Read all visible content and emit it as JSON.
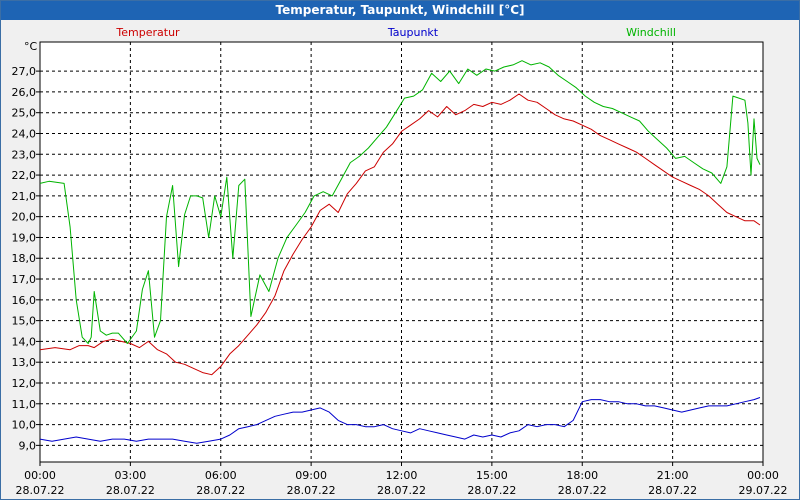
{
  "window_title": "Temperatur, Taupunkt, Windchill [°C]",
  "chart_data": {
    "type": "line",
    "title": "Temperatur, Taupunkt, Windchill [°C]",
    "ylabel": "°C",
    "ylim": [
      8.2,
      28.4
    ],
    "y_ticks": [
      "9,0",
      "10,0",
      "11,0",
      "12,0",
      "13,0",
      "14,0",
      "15,0",
      "16,0",
      "17,0",
      "18,0",
      "19,0",
      "20,0",
      "21,0",
      "22,0",
      "23,0",
      "24,0",
      "25,0",
      "26,0",
      "27,0"
    ],
    "xlim": [
      0,
      24
    ],
    "x_ticks": [
      {
        "time": "00:00",
        "date": "28.07.22"
      },
      {
        "time": "03:00",
        "date": "28.07.22"
      },
      {
        "time": "06:00",
        "date": "28.07.22"
      },
      {
        "time": "09:00",
        "date": "28.07.22"
      },
      {
        "time": "12:00",
        "date": "28.07.22"
      },
      {
        "time": "15:00",
        "date": "28.07.22"
      },
      {
        "time": "18:00",
        "date": "28.07.22"
      },
      {
        "time": "21:00",
        "date": "28.07.22"
      },
      {
        "time": "00:00",
        "date": "29.07.22"
      }
    ],
    "grid": true,
    "series": [
      {
        "name": "Temperatur",
        "color": "#cc0000",
        "x": [
          0,
          0.5,
          1,
          1.3,
          1.6,
          1.8,
          2.1,
          2.4,
          2.7,
          3,
          3.3,
          3.6,
          3.9,
          4.2,
          4.5,
          4.8,
          5.1,
          5.4,
          5.7,
          6,
          6.3,
          6.6,
          6.9,
          7.2,
          7.5,
          7.8,
          8.1,
          8.4,
          8.7,
          9,
          9.3,
          9.6,
          9.9,
          10.2,
          10.5,
          10.8,
          11.1,
          11.4,
          11.7,
          12,
          12.3,
          12.6,
          12.9,
          13.2,
          13.5,
          13.8,
          14.1,
          14.4,
          14.7,
          15,
          15.3,
          15.6,
          15.9,
          16.2,
          16.5,
          16.8,
          17.1,
          17.4,
          17.7,
          18,
          18.3,
          18.6,
          18.9,
          19.2,
          19.5,
          19.8,
          20.1,
          20.4,
          20.7,
          21,
          21.3,
          21.6,
          21.9,
          22.2,
          22.5,
          22.8,
          23.1,
          23.4,
          23.7,
          23.9
        ],
        "y": [
          13.6,
          13.7,
          13.6,
          13.8,
          13.8,
          13.7,
          14.0,
          14.1,
          14.0,
          13.9,
          13.7,
          14.0,
          13.6,
          13.4,
          13.0,
          12.9,
          12.7,
          12.5,
          12.4,
          12.8,
          13.4,
          13.8,
          14.3,
          14.8,
          15.4,
          16.2,
          17.4,
          18.2,
          18.9,
          19.5,
          20.3,
          20.6,
          20.2,
          21.1,
          21.6,
          22.2,
          22.4,
          23.1,
          23.5,
          24.1,
          24.4,
          24.7,
          25.1,
          24.8,
          25.3,
          24.9,
          25.1,
          25.4,
          25.3,
          25.5,
          25.4,
          25.6,
          25.9,
          25.6,
          25.5,
          25.2,
          24.9,
          24.7,
          24.6,
          24.4,
          24.2,
          23.9,
          23.7,
          23.5,
          23.3,
          23.1,
          22.8,
          22.5,
          22.2,
          21.9,
          21.7,
          21.5,
          21.3,
          21.0,
          20.6,
          20.2,
          20.0,
          19.8,
          19.8,
          19.6
        ]
      },
      {
        "name": "Taupunkt",
        "color": "#0000cc",
        "x": [
          0,
          0.4,
          0.8,
          1.2,
          1.6,
          2,
          2.4,
          2.8,
          3.2,
          3.6,
          4,
          4.4,
          4.8,
          5.2,
          5.6,
          6,
          6.3,
          6.6,
          6.9,
          7.2,
          7.5,
          7.8,
          8.1,
          8.4,
          8.7,
          9,
          9.3,
          9.6,
          9.9,
          10.2,
          10.5,
          10.8,
          11.1,
          11.4,
          11.7,
          12,
          12.3,
          12.6,
          12.9,
          13.2,
          13.5,
          13.8,
          14.1,
          14.4,
          14.7,
          15,
          15.3,
          15.6,
          15.9,
          16.2,
          16.5,
          16.8,
          17.1,
          17.4,
          17.7,
          18,
          18.3,
          18.6,
          18.9,
          19.2,
          19.5,
          19.8,
          20.1,
          20.4,
          20.7,
          21,
          21.3,
          21.6,
          21.9,
          22.2,
          22.5,
          22.8,
          23.1,
          23.4,
          23.7,
          23.9
        ],
        "y": [
          9.3,
          9.2,
          9.3,
          9.4,
          9.3,
          9.2,
          9.3,
          9.3,
          9.2,
          9.3,
          9.3,
          9.3,
          9.2,
          9.1,
          9.2,
          9.3,
          9.5,
          9.8,
          9.9,
          10.0,
          10.2,
          10.4,
          10.5,
          10.6,
          10.6,
          10.7,
          10.8,
          10.6,
          10.2,
          10.0,
          10.0,
          9.9,
          9.9,
          10.0,
          9.8,
          9.7,
          9.6,
          9.8,
          9.7,
          9.6,
          9.5,
          9.4,
          9.3,
          9.5,
          9.4,
          9.5,
          9.4,
          9.6,
          9.7,
          10.0,
          9.9,
          10.0,
          10.0,
          9.9,
          10.2,
          11.1,
          11.2,
          11.2,
          11.1,
          11.1,
          11.0,
          11.0,
          10.9,
          10.9,
          10.8,
          10.7,
          10.6,
          10.7,
          10.8,
          10.9,
          10.9,
          10.9,
          11.0,
          11.1,
          11.2,
          11.3
        ]
      },
      {
        "name": "Windchill",
        "color": "#00b400",
        "x": [
          0,
          0.3,
          0.8,
          1,
          1.2,
          1.4,
          1.6,
          1.7,
          1.8,
          2,
          2.2,
          2.4,
          2.6,
          2.9,
          3.2,
          3.4,
          3.6,
          3.8,
          4,
          4.2,
          4.4,
          4.6,
          4.8,
          5,
          5.2,
          5.4,
          5.6,
          5.8,
          6,
          6.2,
          6.4,
          6.6,
          6.8,
          7,
          7.3,
          7.6,
          7.9,
          8.2,
          8.5,
          8.8,
          9.1,
          9.4,
          9.7,
          10,
          10.3,
          10.6,
          10.9,
          11.2,
          11.5,
          11.8,
          12.1,
          12.4,
          12.7,
          13,
          13.3,
          13.6,
          13.9,
          14.2,
          14.5,
          14.8,
          15.1,
          15.4,
          15.7,
          16,
          16.3,
          16.6,
          16.9,
          17.2,
          17.5,
          17.8,
          18.1,
          18.4,
          18.7,
          19,
          19.3,
          19.6,
          19.9,
          20.2,
          20.5,
          20.8,
          21.1,
          21.4,
          21.7,
          22,
          22.3,
          22.6,
          22.8,
          23,
          23.2,
          23.4,
          23.5,
          23.6,
          23.7,
          23.8,
          23.9
        ],
        "y": [
          21.6,
          21.7,
          21.6,
          19.5,
          16.0,
          14.2,
          13.9,
          14.2,
          16.4,
          14.5,
          14.3,
          14.4,
          14.4,
          13.9,
          14.5,
          16.5,
          17.4,
          14.2,
          15.0,
          20.0,
          21.5,
          17.6,
          20.1,
          21.0,
          21.0,
          20.9,
          19.0,
          21.0,
          20.0,
          21.9,
          18.0,
          21.5,
          21.8,
          15.2,
          17.2,
          16.4,
          18.0,
          19.0,
          19.6,
          20.2,
          21.0,
          21.2,
          21.0,
          21.8,
          22.6,
          22.9,
          23.3,
          23.8,
          24.3,
          25.0,
          25.7,
          25.8,
          26.1,
          26.9,
          26.5,
          27.0,
          26.4,
          27.1,
          26.8,
          27.1,
          27.0,
          27.2,
          27.3,
          27.5,
          27.3,
          27.4,
          27.2,
          26.8,
          26.5,
          26.2,
          25.8,
          25.5,
          25.3,
          25.2,
          25.0,
          24.8,
          24.6,
          24.1,
          23.7,
          23.3,
          22.8,
          22.9,
          22.6,
          22.3,
          22.1,
          21.6,
          22.4,
          25.8,
          25.7,
          25.6,
          24.5,
          22.0,
          24.7,
          22.8,
          22.5
        ]
      }
    ]
  }
}
